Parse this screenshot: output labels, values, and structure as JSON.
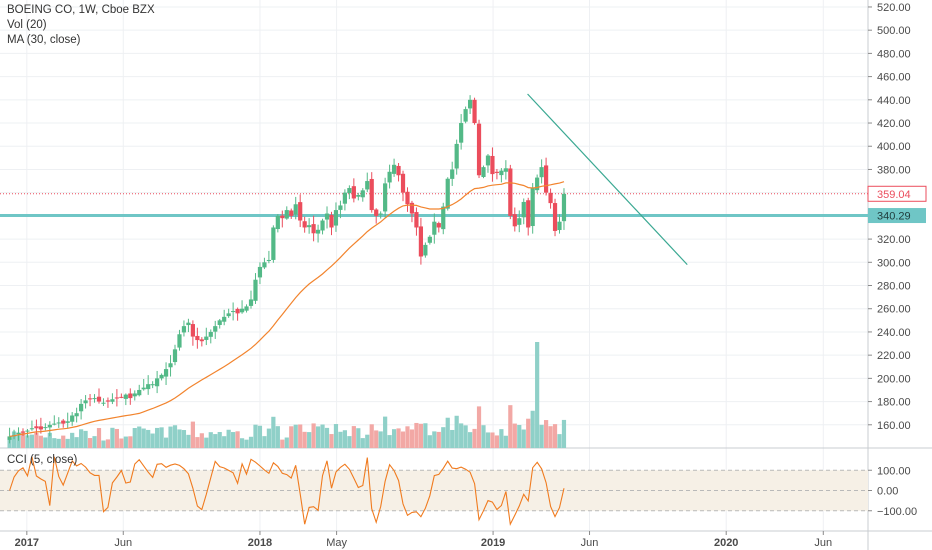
{
  "header": {
    "symbol_line": "BOEING CO, 1W, Cboe BZX",
    "vol_label": "Vol (20)",
    "ma_label": "MA (30, close)",
    "cci_label": "CCI (5, close)"
  },
  "colors": {
    "up": "#53b987",
    "down": "#eb4d5c",
    "up_volume": "#8fd0c8",
    "down_volume": "#f2a8a5",
    "ma": "#f2842e",
    "cci": "#f07b1f",
    "cci_band": "#f6f0e6",
    "support_line": "#6fc6c6",
    "trend_line": "#3aa892",
    "last_price": "#eb4d5c",
    "grid": "#eef0f3",
    "axis_text": "#4a4a4a"
  },
  "chart_data": {
    "type": "candlestick",
    "title": "BOEING CO, 1W, Cboe BZX",
    "price_ticks": [
      "520.00",
      "500.00",
      "480.00",
      "460.00",
      "440.00",
      "420.00",
      "400.00",
      "380.00",
      "360.00",
      "340.00",
      "320.00",
      "300.00",
      "280.00",
      "260.00",
      "240.00",
      "220.00",
      "200.00",
      "180.00",
      "160.00"
    ],
    "price_range": [
      140,
      526
    ],
    "cci_ticks": [
      "100.00",
      "0.00",
      "−100.00"
    ],
    "cci_range": [
      -200,
      200
    ],
    "time_labels": [
      "2017",
      "Jun",
      "2018",
      "May",
      "2019",
      "Jun",
      "2020",
      "Jun"
    ],
    "time_label_dates": [
      "2017-01-01",
      "2017-06-01",
      "2018-01-01",
      "2018-05-01",
      "2019-01-01",
      "2019-06-01",
      "2020-01-01",
      "2020-06-01"
    ],
    "time_range": [
      "2016-11-20",
      "2020-08-10"
    ],
    "last_price": {
      "value": 359.04,
      "label": "359.04"
    },
    "support_level": {
      "value": 340.29,
      "label": "340.29"
    },
    "trend_line": {
      "points": [
        {
          "date": "2019-02-24",
          "value": 445
        },
        {
          "date": "2019-11-01",
          "value": 298
        }
      ]
    },
    "weekly_closes": {
      "start_date": "2016-12-05",
      "closes": [
        150,
        151,
        153,
        154,
        155,
        157,
        157,
        156,
        158,
        160,
        161,
        162,
        161,
        163,
        168,
        170,
        178,
        181,
        182,
        183,
        180,
        179,
        180,
        182,
        183,
        184,
        186,
        183,
        187,
        190,
        192,
        195,
        195,
        200,
        203,
        208,
        213,
        225,
        238,
        245,
        248,
        236,
        233,
        232,
        236,
        240,
        245,
        250,
        253,
        256,
        258,
        256,
        260,
        262,
        268,
        285,
        296,
        300,
        302,
        330,
        340,
        338,
        345,
        340,
        350,
        336,
        330,
        332,
        325,
        328,
        336,
        342,
        330,
        345,
        349,
        360,
        364,
        355,
        358,
        362,
        370,
        345,
        340,
        342,
        368,
        378,
        384,
        375,
        360,
        350,
        342,
        330,
        305,
        315,
        322,
        335,
        330,
        348,
        372,
        380,
        402,
        420,
        432,
        440,
        420,
        375,
        382,
        392,
        376,
        377,
        379,
        381,
        340,
        331,
        338,
        352,
        330,
        364,
        373,
        382,
        360,
        351,
        327,
        335,
        359
      ]
    },
    "ma_label": "MA (30, close)",
    "volume_label": "Vol (20)",
    "cci_label": "CCI (5, close)"
  }
}
